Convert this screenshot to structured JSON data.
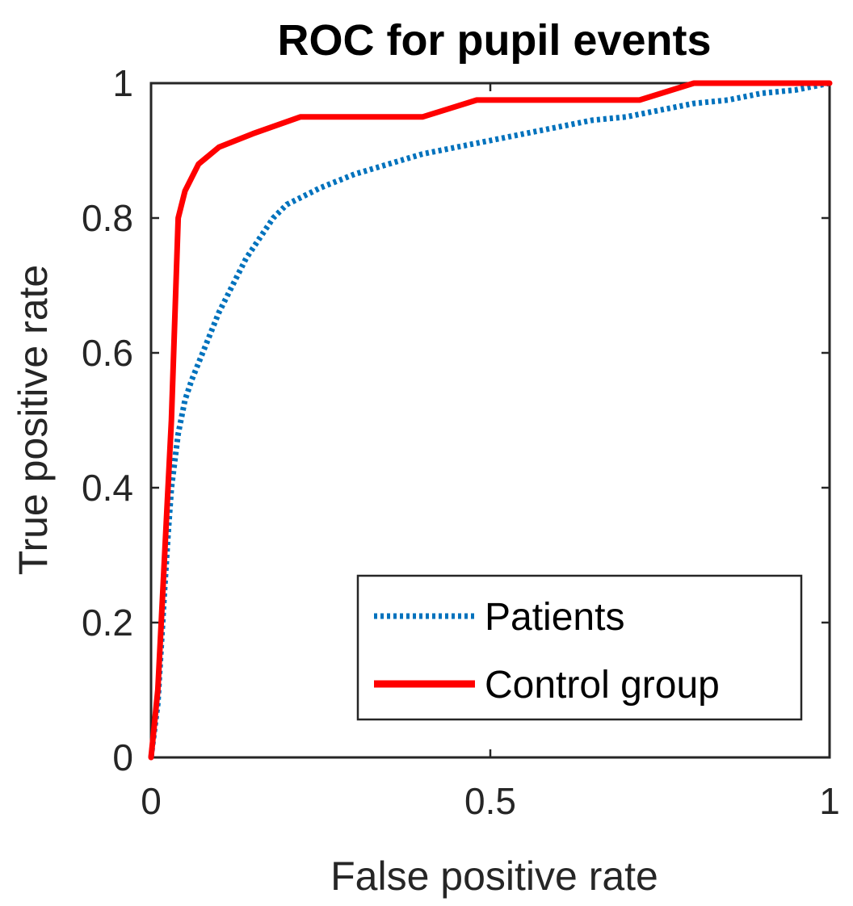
{
  "chart_data": {
    "type": "line",
    "title": "ROC for pupil events",
    "xlabel": "False positive rate",
    "ylabel": "True positive rate",
    "xlim": [
      0,
      1
    ],
    "ylim": [
      0,
      1
    ],
    "xticks": [
      0,
      0.5,
      1
    ],
    "xtick_labels": [
      "0",
      "0.5",
      "1"
    ],
    "yticks": [
      0,
      0.2,
      0.4,
      0.6,
      0.8,
      1
    ],
    "ytick_labels": [
      "0",
      "0.2",
      "0.4",
      "0.6",
      "0.8",
      "1"
    ],
    "grid": false,
    "legend": {
      "position": "bottom-right",
      "boxed": true
    },
    "series": [
      {
        "name": "Patients",
        "color": "#0072BD",
        "style": "dotted",
        "x": [
          0,
          0.01,
          0.02,
          0.025,
          0.03,
          0.04,
          0.05,
          0.06,
          0.08,
          0.1,
          0.12,
          0.14,
          0.16,
          0.18,
          0.2,
          0.25,
          0.3,
          0.35,
          0.4,
          0.45,
          0.5,
          0.55,
          0.6,
          0.65,
          0.7,
          0.75,
          0.8,
          0.85,
          0.9,
          0.95,
          1.0
        ],
        "y": [
          0,
          0.08,
          0.25,
          0.33,
          0.4,
          0.48,
          0.53,
          0.56,
          0.61,
          0.66,
          0.7,
          0.74,
          0.77,
          0.8,
          0.82,
          0.845,
          0.865,
          0.88,
          0.895,
          0.905,
          0.915,
          0.925,
          0.935,
          0.945,
          0.95,
          0.96,
          0.97,
          0.975,
          0.985,
          0.99,
          1.0
        ]
      },
      {
        "name": "Control group",
        "color": "#FF0000",
        "style": "solid",
        "x": [
          0,
          0.01,
          0.02,
          0.03,
          0.04,
          0.05,
          0.07,
          0.1,
          0.15,
          0.22,
          0.3,
          0.4,
          0.48,
          0.55,
          0.62,
          0.72,
          0.8,
          0.9,
          1.0
        ],
        "y": [
          0,
          0.1,
          0.3,
          0.5,
          0.8,
          0.84,
          0.88,
          0.905,
          0.925,
          0.95,
          0.95,
          0.95,
          0.975,
          0.975,
          0.975,
          0.975,
          1.0,
          1.0,
          1.0
        ]
      }
    ]
  }
}
